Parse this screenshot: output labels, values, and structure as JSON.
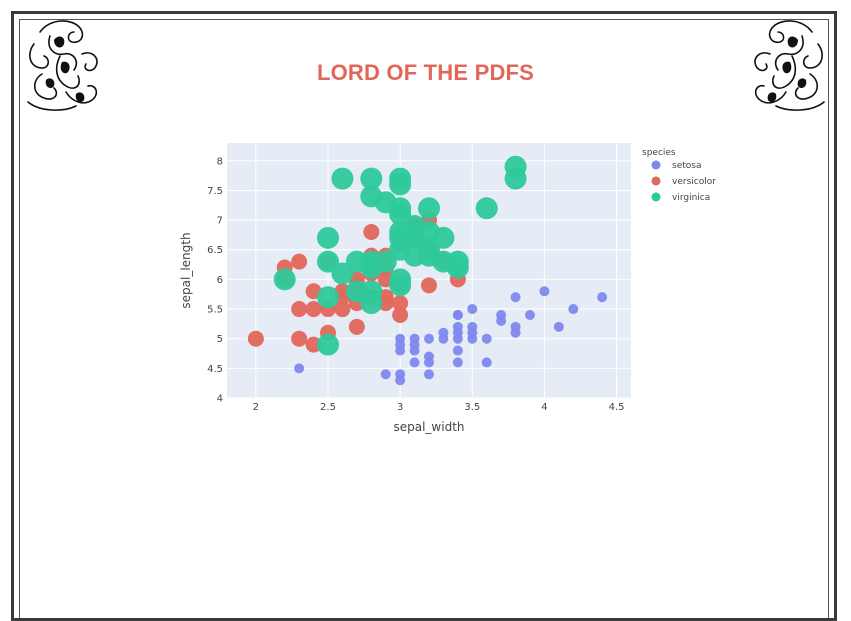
{
  "page": {
    "title": "LORD OF THE PDFS"
  },
  "emblems": {
    "left": "heraldic-lion-ornament",
    "right": "heraldic-lion-ornament"
  },
  "chart_data": {
    "type": "scatter",
    "xlabel": "sepal_width",
    "ylabel": "sepal_length",
    "xlim": [
      1.8,
      4.6
    ],
    "ylim": [
      4.0,
      8.3
    ],
    "x_ticks": [
      "2",
      "2.5",
      "3",
      "3.5",
      "4",
      "4.5"
    ],
    "y_ticks": [
      "4",
      "4.5",
      "5",
      "5.5",
      "6",
      "6.5",
      "7",
      "7.5",
      "8"
    ],
    "grid": true,
    "plot_background": "#e5ecf6",
    "legend": {
      "title": "species",
      "placement": "right"
    },
    "series": [
      {
        "name": "setosa",
        "color": "#7f88ed",
        "marker_size": "small",
        "points": [
          [
            2.3,
            4.5
          ],
          [
            2.9,
            4.4
          ],
          [
            3.0,
            4.4
          ],
          [
            3.0,
            4.3
          ],
          [
            3.2,
            4.4
          ],
          [
            3.0,
            4.8
          ],
          [
            3.1,
            4.8
          ],
          [
            3.1,
            4.9
          ],
          [
            3.0,
            5.0
          ],
          [
            3.2,
            4.7
          ],
          [
            3.2,
            4.6
          ],
          [
            3.1,
            4.6
          ],
          [
            3.4,
            4.6
          ],
          [
            3.4,
            4.8
          ],
          [
            3.4,
            5.0
          ],
          [
            3.3,
            5.0
          ],
          [
            3.5,
            5.0
          ],
          [
            3.6,
            5.0
          ],
          [
            3.0,
            4.9
          ],
          [
            3.1,
            5.0
          ],
          [
            3.2,
            5.0
          ],
          [
            3.3,
            5.1
          ],
          [
            3.4,
            5.1
          ],
          [
            3.5,
            5.1
          ],
          [
            3.5,
            5.2
          ],
          [
            3.4,
            5.2
          ],
          [
            3.7,
            5.3
          ],
          [
            3.7,
            5.4
          ],
          [
            3.9,
            5.4
          ],
          [
            3.4,
            5.4
          ],
          [
            3.5,
            5.5
          ],
          [
            4.2,
            5.5
          ],
          [
            4.1,
            5.2
          ],
          [
            3.8,
            5.1
          ],
          [
            3.8,
            5.7
          ],
          [
            4.0,
            5.8
          ],
          [
            4.4,
            5.7
          ],
          [
            3.8,
            5.2
          ],
          [
            3.6,
            4.6
          ],
          [
            3.4,
            5.4
          ]
        ]
      },
      {
        "name": "versicolor",
        "color": "#e1675b",
        "marker_size": "medium",
        "points": [
          [
            2.0,
            5.0
          ],
          [
            2.2,
            6.2
          ],
          [
            2.3,
            6.3
          ],
          [
            2.2,
            6.0
          ],
          [
            2.3,
            5.5
          ],
          [
            2.4,
            5.5
          ],
          [
            2.5,
            5.5
          ],
          [
            2.6,
            5.5
          ],
          [
            2.3,
            5.0
          ],
          [
            2.4,
            4.9
          ],
          [
            2.5,
            5.1
          ],
          [
            2.7,
            5.2
          ],
          [
            2.6,
            5.7
          ],
          [
            2.6,
            5.8
          ],
          [
            2.7,
            5.8
          ],
          [
            2.7,
            5.6
          ],
          [
            2.8,
            5.7
          ],
          [
            2.9,
            5.6
          ],
          [
            2.8,
            6.1
          ],
          [
            2.9,
            6.0
          ],
          [
            3.0,
            5.9
          ],
          [
            3.0,
            5.6
          ],
          [
            3.0,
            5.4
          ],
          [
            2.9,
            6.2
          ],
          [
            2.8,
            6.4
          ],
          [
            2.9,
            6.4
          ],
          [
            3.0,
            6.6
          ],
          [
            2.8,
            6.8
          ],
          [
            3.1,
            6.7
          ],
          [
            3.2,
            6.5
          ],
          [
            3.2,
            7.0
          ],
          [
            3.1,
            6.9
          ],
          [
            3.4,
            6.0
          ],
          [
            3.3,
            6.3
          ],
          [
            3.2,
            5.9
          ],
          [
            2.7,
            5.9
          ],
          [
            2.5,
            6.3
          ],
          [
            2.4,
            5.8
          ],
          [
            2.9,
            5.7
          ],
          [
            2.7,
            6.0
          ]
        ]
      },
      {
        "name": "virginica",
        "color": "#2dc99a",
        "marker_size": "large",
        "points": [
          [
            2.5,
            4.9
          ],
          [
            2.5,
            5.7
          ],
          [
            2.5,
            6.3
          ],
          [
            2.5,
            6.7
          ],
          [
            2.2,
            6.0
          ],
          [
            2.6,
            6.1
          ],
          [
            2.7,
            5.8
          ],
          [
            2.8,
            5.8
          ],
          [
            2.8,
            5.6
          ],
          [
            2.8,
            6.2
          ],
          [
            2.7,
            6.3
          ],
          [
            2.8,
            6.3
          ],
          [
            2.9,
            6.3
          ],
          [
            3.0,
            6.0
          ],
          [
            3.0,
            5.9
          ],
          [
            3.0,
            6.5
          ],
          [
            3.0,
            6.7
          ],
          [
            3.0,
            6.8
          ],
          [
            3.0,
            7.1
          ],
          [
            3.1,
            6.4
          ],
          [
            3.1,
            6.7
          ],
          [
            3.1,
            6.9
          ],
          [
            3.2,
            6.4
          ],
          [
            3.2,
            6.5
          ],
          [
            3.2,
            6.8
          ],
          [
            3.2,
            7.2
          ],
          [
            3.3,
            6.3
          ],
          [
            3.3,
            6.7
          ],
          [
            3.4,
            6.3
          ],
          [
            3.4,
            6.2
          ],
          [
            3.6,
            7.2
          ],
          [
            3.8,
            7.7
          ],
          [
            3.8,
            7.9
          ],
          [
            3.0,
            7.7
          ],
          [
            2.8,
            7.7
          ],
          [
            2.6,
            7.7
          ],
          [
            2.8,
            7.4
          ],
          [
            2.9,
            7.3
          ],
          [
            3.0,
            7.6
          ],
          [
            3.0,
            7.2
          ]
        ]
      }
    ]
  }
}
